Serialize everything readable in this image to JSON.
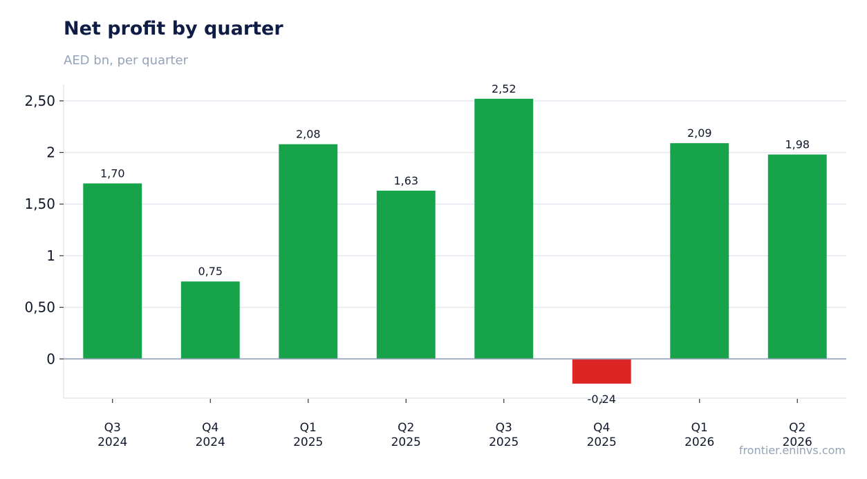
{
  "header": {
    "title": "Net profit by quarter",
    "subtitle": "AED bn, per quarter"
  },
  "footer": {
    "source": "frontier.eninvs.com"
  },
  "chart_data": {
    "type": "bar",
    "categories": [
      [
        "Q3",
        "2024"
      ],
      [
        "Q4",
        "2024"
      ],
      [
        "Q1",
        "2025"
      ],
      [
        "Q2",
        "2025"
      ],
      [
        "Q3",
        "2025"
      ],
      [
        "Q4",
        "2025"
      ],
      [
        "Q1",
        "2026"
      ],
      [
        "Q2",
        "2026"
      ]
    ],
    "values": [
      1.7,
      0.75,
      2.08,
      1.63,
      2.52,
      -0.24,
      2.09,
      1.98
    ],
    "value_labels": [
      "1,70",
      "0,75",
      "2,08",
      "1,63",
      "2,52",
      "-0,24",
      "2,09",
      "1,98"
    ],
    "y_ticks": [
      0,
      0.5,
      1,
      1.5,
      2,
      2.5
    ],
    "y_tick_labels": [
      "0",
      "0,50",
      "1",
      "1,50",
      "2",
      "2,50"
    ],
    "ylim": [
      -0.38,
      2.66
    ],
    "grid": true,
    "legend": "none",
    "colors": {
      "positive": "#17a34a",
      "negative": "#dc2626",
      "grid": "#e2e8f0",
      "zero_line": "#94a3b8",
      "label": "#0f172a"
    }
  }
}
